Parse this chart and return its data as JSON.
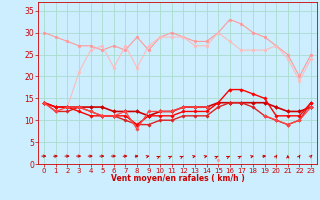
{
  "xlabel": "Vent moyen/en rafales ( km/h )",
  "bg_color": "#cceeff",
  "grid_color": "#aaddcc",
  "x_ticks": [
    0,
    1,
    2,
    3,
    4,
    5,
    6,
    7,
    8,
    9,
    10,
    11,
    12,
    13,
    14,
    15,
    16,
    17,
    18,
    19,
    20,
    21,
    22,
    23
  ],
  "ylim": [
    0,
    37
  ],
  "yticks": [
    0,
    5,
    10,
    15,
    20,
    25,
    30,
    35
  ],
  "series": [
    {
      "y": [
        30,
        29,
        28,
        27,
        27,
        26,
        27,
        26,
        29,
        26,
        29,
        30,
        29,
        28,
        28,
        30,
        33,
        32,
        30,
        29,
        27,
        25,
        20,
        25
      ],
      "color": "#ff9999",
      "lw": 0.8,
      "marker": "o",
      "ms": 2.0
    },
    {
      "y": [
        14,
        12,
        13,
        21,
        26,
        27,
        22,
        27,
        22,
        27,
        29,
        29,
        29,
        27,
        27,
        30,
        28,
        26,
        26,
        26,
        27,
        24,
        19,
        24
      ],
      "color": "#ffbbbb",
      "lw": 0.8,
      "marker": "o",
      "ms": 2.0
    },
    {
      "y": [
        14,
        13,
        13,
        13,
        13,
        13,
        12,
        12,
        12,
        11,
        12,
        12,
        13,
        13,
        13,
        14,
        14,
        14,
        14,
        14,
        13,
        12,
        12,
        13
      ],
      "color": "#cc0000",
      "lw": 1.2,
      "marker": "D",
      "ms": 2.0
    },
    {
      "y": [
        14,
        12,
        12,
        13,
        12,
        11,
        11,
        10,
        9,
        9,
        10,
        10,
        11,
        11,
        11,
        13,
        14,
        14,
        13,
        11,
        10,
        9,
        10,
        14
      ],
      "color": "#dd2222",
      "lw": 1.0,
      "marker": "D",
      "ms": 1.8
    },
    {
      "y": [
        14,
        13,
        13,
        12,
        11,
        11,
        11,
        11,
        9,
        11,
        11,
        11,
        12,
        12,
        12,
        14,
        17,
        17,
        16,
        15,
        11,
        11,
        11,
        14
      ],
      "color": "#ff0000",
      "lw": 1.0,
      "marker": "D",
      "ms": 1.8
    },
    {
      "y": [
        14,
        12,
        13,
        13,
        12,
        11,
        11,
        12,
        8,
        12,
        12,
        12,
        13,
        13,
        13,
        null,
        null,
        null,
        null,
        11,
        10,
        9,
        10,
        13
      ],
      "color": "#ff4444",
      "lw": 0.9,
      "marker": "D",
      "ms": 1.8
    },
    {
      "y": [
        null,
        null,
        null,
        null,
        null,
        null,
        null,
        null,
        null,
        null,
        null,
        null,
        null,
        null,
        null,
        1,
        null,
        null,
        null,
        null,
        null,
        null,
        null,
        null
      ],
      "color": "#ff9999",
      "lw": 0.8,
      "marker": "o",
      "ms": 2.0
    }
  ],
  "wind_angles": [
    0,
    15,
    0,
    0,
    0,
    0,
    0,
    15,
    30,
    45,
    60,
    60,
    60,
    45,
    45,
    60,
    60,
    60,
    45,
    30,
    80,
    90,
    80,
    75
  ],
  "arrow_color": "#cc0000"
}
